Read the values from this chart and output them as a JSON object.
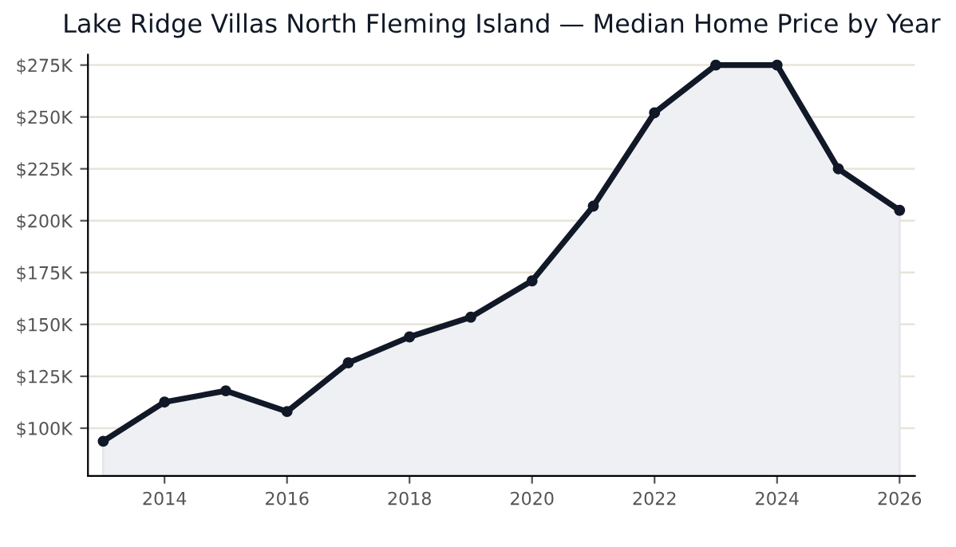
{
  "chart_data": {
    "type": "area",
    "title": "Lake Ridge Villas North Fleming Island — Median Home Price by Year",
    "x": [
      2013,
      2014,
      2015,
      2016,
      2017,
      2018,
      2019,
      2020,
      2021,
      2022,
      2023,
      2024,
      2025,
      2026
    ],
    "series": [
      {
        "color": "#111827",
        "values": [
          93.7,
          112.6,
          118,
          108,
          131.5,
          144,
          153.5,
          171,
          207,
          252,
          275,
          275,
          225,
          205
        ]
      }
    ],
    "xlim": [
      2012.75,
      2026.25
    ],
    "xticks": [
      2014,
      2016,
      2018,
      2020,
      2022,
      2024,
      2026
    ],
    "ylim": [
      77,
      280
    ],
    "yticks": [
      {
        "value": 100,
        "label": "$100K"
      },
      {
        "value": 125,
        "label": "$125K"
      },
      {
        "value": 150,
        "label": "$150K"
      },
      {
        "value": 175,
        "label": "$175K"
      },
      {
        "value": 200,
        "label": "$200K"
      },
      {
        "value": 225,
        "label": "$225K"
      },
      {
        "value": 250,
        "label": "$250K"
      },
      {
        "value": 275,
        "label": "$275K"
      }
    ],
    "grid": "y",
    "marker": "circle",
    "line_style": "solid"
  }
}
